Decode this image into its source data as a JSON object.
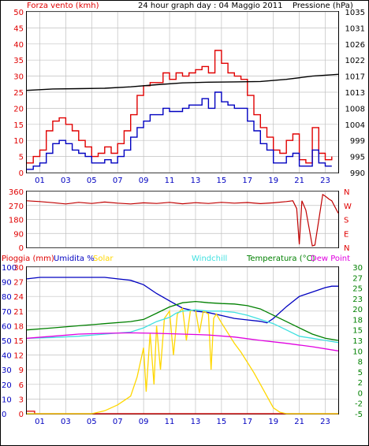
{
  "header": {
    "wind_label": "Forza vento (kmh)",
    "title": "24 hour graph day : 04 Maggio 2011",
    "pressure_label": "Pressione (hPa)"
  },
  "colors": {
    "red": "#e00000",
    "darkred": "#c00000",
    "blue": "#0000c0",
    "black": "#000000",
    "green": "#008000",
    "cyan": "#40e0e0",
    "yellow": "#ffd700",
    "magenta": "#e000e0",
    "grid": "#c0c0c0"
  },
  "bottom_legend": {
    "rain": "Pioggia (mm)",
    "humidity": "Umidita %",
    "solar": "Solar",
    "windchill": "Windchill",
    "temperature": "Temperatura (°C)",
    "dewpoint": "Dew Point"
  },
  "chart_data": [
    {
      "type": "line",
      "id": "wind-pressure",
      "x_ticks": [
        "01",
        "03",
        "05",
        "07",
        "09",
        "11",
        "13",
        "15",
        "17",
        "19",
        "21",
        "23"
      ],
      "xlim": [
        0,
        24
      ],
      "y_left": {
        "label": "Forza vento (kmh)",
        "ticks": [
          0,
          5,
          10,
          15,
          20,
          25,
          30,
          35,
          40,
          45,
          50
        ],
        "ylim": [
          0,
          50
        ]
      },
      "y_right": {
        "label": "Pressione (hPa)",
        "ticks": [
          990,
          995,
          999,
          1004,
          1008,
          1013,
          1017,
          1022,
          1026,
          1031,
          1035
        ],
        "ylim": [
          990,
          1035
        ]
      },
      "series": [
        {
          "name": "gust",
          "color": "#e00000",
          "axis": "left",
          "x": [
            0,
            0.5,
            1,
            1.5,
            2,
            2.5,
            3,
            3.5,
            4,
            4.5,
            5,
            5.5,
            6,
            6.5,
            7,
            7.5,
            8,
            8.5,
            9,
            9.5,
            10,
            10.5,
            11,
            11.5,
            12,
            12.5,
            13,
            13.5,
            14,
            14.5,
            15,
            15.5,
            16,
            16.5,
            17,
            17.5,
            18,
            18.5,
            19,
            19.5,
            20,
            20.5,
            21,
            21.5,
            22,
            22.5,
            23,
            23.5
          ],
          "values": [
            3,
            5,
            7,
            13,
            16,
            17,
            15,
            13,
            10,
            8,
            5,
            6,
            8,
            6,
            9,
            13,
            18,
            24,
            27,
            28,
            28,
            31,
            29,
            31,
            30,
            31,
            32,
            33,
            31,
            38,
            34,
            31,
            30,
            29,
            24,
            18,
            14,
            11,
            7,
            6,
            10,
            12,
            4,
            3,
            14,
            6,
            4,
            5
          ]
        },
        {
          "name": "average",
          "color": "#0000c0",
          "axis": "left",
          "x": [
            0,
            0.5,
            1,
            1.5,
            2,
            2.5,
            3,
            3.5,
            4,
            4.5,
            5,
            5.5,
            6,
            6.5,
            7,
            7.5,
            8,
            8.5,
            9,
            9.5,
            10,
            10.5,
            11,
            11.5,
            12,
            12.5,
            13,
            13.5,
            14,
            14.5,
            15,
            15.5,
            16,
            16.5,
            17,
            17.5,
            18,
            18.5,
            19,
            19.5,
            20,
            20.5,
            21,
            21.5,
            22,
            22.5,
            23,
            23.5
          ],
          "values": [
            1,
            2,
            3,
            6,
            9,
            10,
            9,
            7,
            6,
            5,
            3,
            3,
            4,
            3,
            5,
            7,
            11,
            14,
            16,
            18,
            18,
            20,
            19,
            19,
            20,
            21,
            21,
            23,
            20,
            25,
            22,
            21,
            20,
            20,
            16,
            13,
            9,
            7,
            3,
            3,
            5,
            6,
            2,
            2,
            7,
            3,
            2,
            2
          ]
        },
        {
          "name": "pressure",
          "color": "#000000",
          "axis": "right",
          "x": [
            0,
            2,
            4,
            6,
            8,
            10,
            12,
            14,
            16,
            18,
            20,
            22,
            24
          ],
          "values": [
            1013,
            1013.4,
            1013.5,
            1013.6,
            1014.0,
            1014.6,
            1015.1,
            1015.3,
            1015.4,
            1015.5,
            1016.1,
            1017.0,
            1017.5
          ]
        }
      ]
    },
    {
      "type": "line",
      "id": "wind-direction",
      "x_ticks": [],
      "xlim": [
        0,
        24
      ],
      "y_left": {
        "ticks": [
          0,
          90,
          180,
          270,
          360
        ],
        "ylim": [
          0,
          360
        ]
      },
      "y_right": {
        "ticks": [
          "N",
          "W",
          "S",
          "E",
          "N"
        ]
      },
      "series": [
        {
          "name": "direction",
          "color": "#c00000",
          "axis": "left",
          "x": [
            0,
            1,
            2,
            3,
            4,
            5,
            6,
            7,
            8,
            9,
            10,
            11,
            12,
            13,
            14,
            15,
            16,
            17,
            18,
            19,
            20,
            20.5,
            20.8,
            21,
            21.2,
            21.5,
            22,
            22.2,
            22.8,
            23,
            23.3,
            23.5,
            24
          ],
          "values": [
            300,
            295,
            288,
            280,
            290,
            283,
            292,
            285,
            280,
            287,
            283,
            290,
            281,
            288,
            283,
            290,
            285,
            289,
            282,
            287,
            295,
            300,
            250,
            20,
            300,
            240,
            10,
            15,
            340,
            330,
            310,
            300,
            220
          ]
        }
      ]
    },
    {
      "type": "line",
      "id": "rain-humidity-temperature",
      "x_ticks": [
        "01",
        "03",
        "05",
        "07",
        "09",
        "11",
        "13",
        "15",
        "17",
        "19",
        "21",
        "23"
      ],
      "xlim": [
        0,
        24
      ],
      "y_left_rain": {
        "label": "Pioggia (mm)",
        "ticks": [
          0,
          3,
          6,
          9,
          12,
          15,
          18,
          21,
          24,
          27,
          30
        ],
        "ylim": [
          0,
          30
        ]
      },
      "y_left_humidity": {
        "label": "Umidita %",
        "ticks": [
          0,
          10,
          20,
          30,
          40,
          50,
          60,
          70,
          80,
          90,
          100
        ],
        "ylim": [
          0,
          100
        ]
      },
      "y_right": {
        "label": "Temperatura (°C)",
        "ticks": [
          -5,
          -2,
          0,
          2,
          5,
          8,
          10,
          13,
          15,
          18,
          20,
          23,
          25,
          27,
          30
        ],
        "ylim": [
          -5,
          30
        ]
      },
      "series": [
        {
          "name": "rain",
          "color": "#e00000",
          "unit": "mm",
          "x": [
            0,
            0.6,
            0.6,
            24
          ],
          "values": [
            0.5,
            0.5,
            0,
            0
          ]
        },
        {
          "name": "humidity",
          "color": "#0000c0",
          "unit": "%",
          "x": [
            0,
            1,
            2,
            3,
            4,
            5,
            6,
            7,
            8,
            9,
            10,
            11,
            12,
            13,
            14,
            15,
            16,
            17,
            18,
            18.5,
            19,
            20,
            21,
            22,
            23,
            23.5,
            24
          ],
          "values": [
            92,
            93,
            93,
            93,
            93,
            93,
            93,
            92,
            91,
            88,
            82,
            77,
            72,
            70,
            69,
            67,
            65,
            64,
            63,
            62,
            65,
            73,
            80,
            83,
            86,
            87,
            87
          ]
        },
        {
          "name": "solar",
          "color": "#ffd700",
          "unit": "relative",
          "x": [
            0,
            4,
            5,
            6,
            7,
            7.5,
            8,
            8.5,
            9,
            9.2,
            9.5,
            9.8,
            10,
            10.3,
            10.6,
            11,
            11.3,
            11.6,
            12,
            12.3,
            12.6,
            13,
            13.3,
            13.6,
            14,
            14.2,
            14.4,
            14.6,
            15,
            15.5,
            16,
            16.5,
            17,
            17.5,
            18,
            18.5,
            19,
            19.5,
            20,
            21,
            22,
            23,
            24
          ],
          "values": [
            0,
            0,
            0,
            2,
            6,
            9,
            12,
            25,
            45,
            15,
            55,
            20,
            60,
            30,
            65,
            70,
            40,
            68,
            72,
            50,
            70,
            71,
            55,
            70,
            68,
            30,
            65,
            68,
            62,
            55,
            48,
            42,
            35,
            28,
            20,
            12,
            4,
            1,
            0,
            0,
            0,
            0,
            0
          ]
        },
        {
          "name": "windchill",
          "color": "#40e0e0",
          "unit": "°C",
          "x": [
            0,
            2,
            4,
            6,
            8,
            9,
            10,
            11,
            11.5,
            12,
            13,
            14,
            15,
            16,
            17,
            18,
            19,
            20,
            21,
            22,
            23,
            24
          ],
          "values": [
            13,
            13.2,
            13.5,
            14,
            14.5,
            15.5,
            17,
            18,
            19,
            19.5,
            19.8,
            19.5,
            19.5,
            19.2,
            18.5,
            17.5,
            16.5,
            15,
            13.5,
            13,
            12.5,
            12
          ]
        },
        {
          "name": "temperature",
          "color": "#008000",
          "unit": "°C",
          "x": [
            0,
            2,
            4,
            6,
            8,
            9,
            10,
            11,
            12,
            13,
            14,
            15,
            16,
            17,
            18,
            19,
            20,
            21,
            22,
            23,
            24
          ],
          "values": [
            15,
            15.5,
            16,
            16.5,
            17,
            17.5,
            19,
            20.5,
            21.5,
            21.8,
            21.5,
            21.3,
            21.2,
            20.8,
            20,
            18.5,
            17,
            15.5,
            14,
            13,
            12.5
          ]
        },
        {
          "name": "dewpoint",
          "color": "#e000e0",
          "unit": "°C",
          "x": [
            0,
            2,
            4,
            6,
            8,
            10,
            12,
            14,
            16,
            18,
            20,
            22,
            24
          ],
          "values": [
            13,
            13.5,
            14,
            14.2,
            14.3,
            14.2,
            14,
            13.8,
            13.3,
            12.5,
            11.8,
            11,
            10
          ]
        }
      ]
    }
  ]
}
